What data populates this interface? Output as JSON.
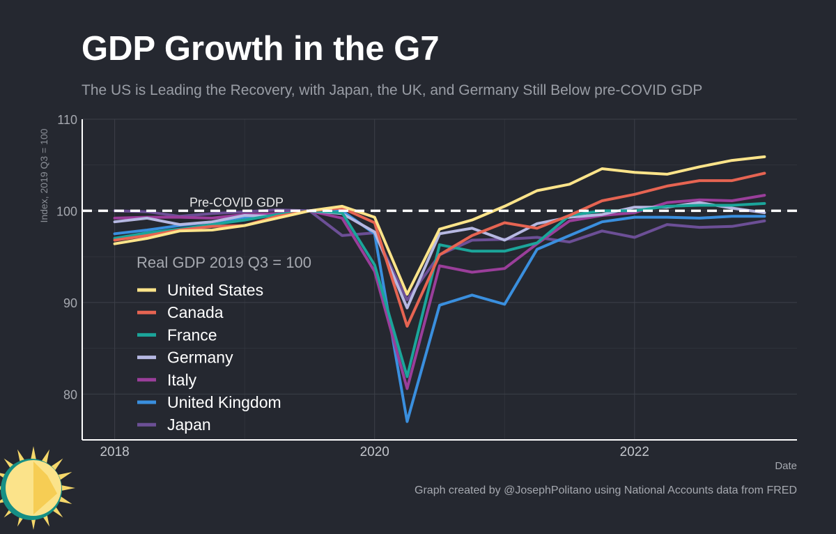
{
  "header": {
    "title": "GDP Growth in the G7",
    "subtitle": "The US is Leading the Recovery, with Japan, the UK, and Germany Still Below pre-COVID GDP"
  },
  "caption": "Graph created by @JosephPolitano using National Accounts data from FRED",
  "colors": {
    "background": "#252830",
    "grid": "#3d4049",
    "axis": "#ffffff",
    "reference": "#ffffff"
  },
  "chart_data": {
    "type": "line",
    "title": "GDP Growth in the G7",
    "subtitle": "The US is Leading the Recovery, with Japan, the UK, and Germany Still Below pre-COVID GDP",
    "xlabel": "Date",
    "ylabel": "Index, 2019 Q3 = 100",
    "xlim": [
      2017.75,
      2023.25
    ],
    "ylim": [
      75,
      110
    ],
    "x_ticks": [
      2018,
      2020,
      2022
    ],
    "x_tick_labels": [
      "2018",
      "2020",
      "2022"
    ],
    "y_ticks": [
      80,
      90,
      100,
      110
    ],
    "y_tick_labels": [
      "80",
      "90",
      "100",
      "110"
    ],
    "grid": true,
    "legend": {
      "title": "Real GDP 2019 Q3 = 100",
      "position": "left-center"
    },
    "reference_line": {
      "y": 100,
      "label": "Pre-COVID GDP",
      "style": "dashed"
    },
    "x": [
      2018.0,
      2018.25,
      2018.5,
      2018.75,
      2019.0,
      2019.25,
      2019.5,
      2019.75,
      2020.0,
      2020.25,
      2020.5,
      2020.75,
      2021.0,
      2021.25,
      2021.5,
      2021.75,
      2022.0,
      2022.25,
      2022.5,
      2022.75,
      2023.0
    ],
    "series": [
      {
        "name": "Japan",
        "color": "#6c4f96",
        "values": [
          100.0,
          99.9,
          99.4,
          99.7,
          99.9,
          100.1,
          100.0,
          97.3,
          97.6,
          90.3,
          95.2,
          96.8,
          96.9,
          97.1,
          96.6,
          97.8,
          97.1,
          98.5,
          98.2,
          98.3,
          98.9
        ]
      },
      {
        "name": "United Kingdom",
        "color": "#3a8fde",
        "values": [
          97.5,
          97.9,
          98.4,
          98.8,
          99.3,
          99.6,
          100.0,
          100.0,
          97.5,
          77.0,
          89.7,
          90.8,
          89.8,
          95.8,
          97.3,
          98.8,
          99.3,
          99.3,
          99.2,
          99.4,
          99.4
        ]
      },
      {
        "name": "Italy",
        "color": "#9a3e9a",
        "values": [
          99.2,
          99.3,
          99.3,
          99.2,
          99.6,
          99.7,
          100.0,
          99.2,
          93.4,
          80.6,
          94.0,
          93.3,
          93.7,
          96.4,
          98.9,
          99.5,
          99.8,
          100.9,
          101.2,
          101.1,
          101.7
        ]
      },
      {
        "name": "Germany",
        "color": "#b6b8e2",
        "values": [
          98.8,
          99.2,
          98.5,
          98.8,
          99.5,
          99.4,
          100.0,
          99.7,
          97.7,
          89.4,
          97.5,
          98.1,
          96.8,
          98.6,
          99.3,
          99.6,
          100.4,
          100.4,
          100.9,
          100.3,
          99.8
        ]
      },
      {
        "name": "France",
        "color": "#1ba59a",
        "values": [
          97.0,
          97.6,
          98.0,
          98.5,
          99.0,
          99.6,
          100.0,
          99.8,
          94.1,
          81.9,
          96.3,
          95.6,
          95.6,
          96.5,
          99.5,
          100.0,
          100.0,
          100.5,
          100.6,
          100.6,
          100.8
        ]
      },
      {
        "name": "Canada",
        "color": "#e66452",
        "values": [
          96.8,
          97.3,
          97.9,
          98.3,
          98.4,
          99.4,
          100.0,
          100.3,
          98.7,
          87.4,
          95.2,
          97.3,
          98.7,
          98.1,
          99.5,
          101.1,
          101.8,
          102.7,
          103.3,
          103.3,
          104.1
        ]
      },
      {
        "name": "United States",
        "color": "#fde48a",
        "values": [
          96.4,
          97.0,
          97.8,
          97.9,
          98.4,
          99.2,
          100.0,
          100.5,
          99.3,
          90.9,
          98.0,
          99.0,
          100.5,
          102.2,
          102.9,
          104.6,
          104.2,
          104.0,
          104.8,
          105.5,
          105.9
        ]
      }
    ],
    "legend_order": [
      "United States",
      "Canada",
      "France",
      "Germany",
      "Italy",
      "United Kingdom",
      "Japan"
    ]
  }
}
